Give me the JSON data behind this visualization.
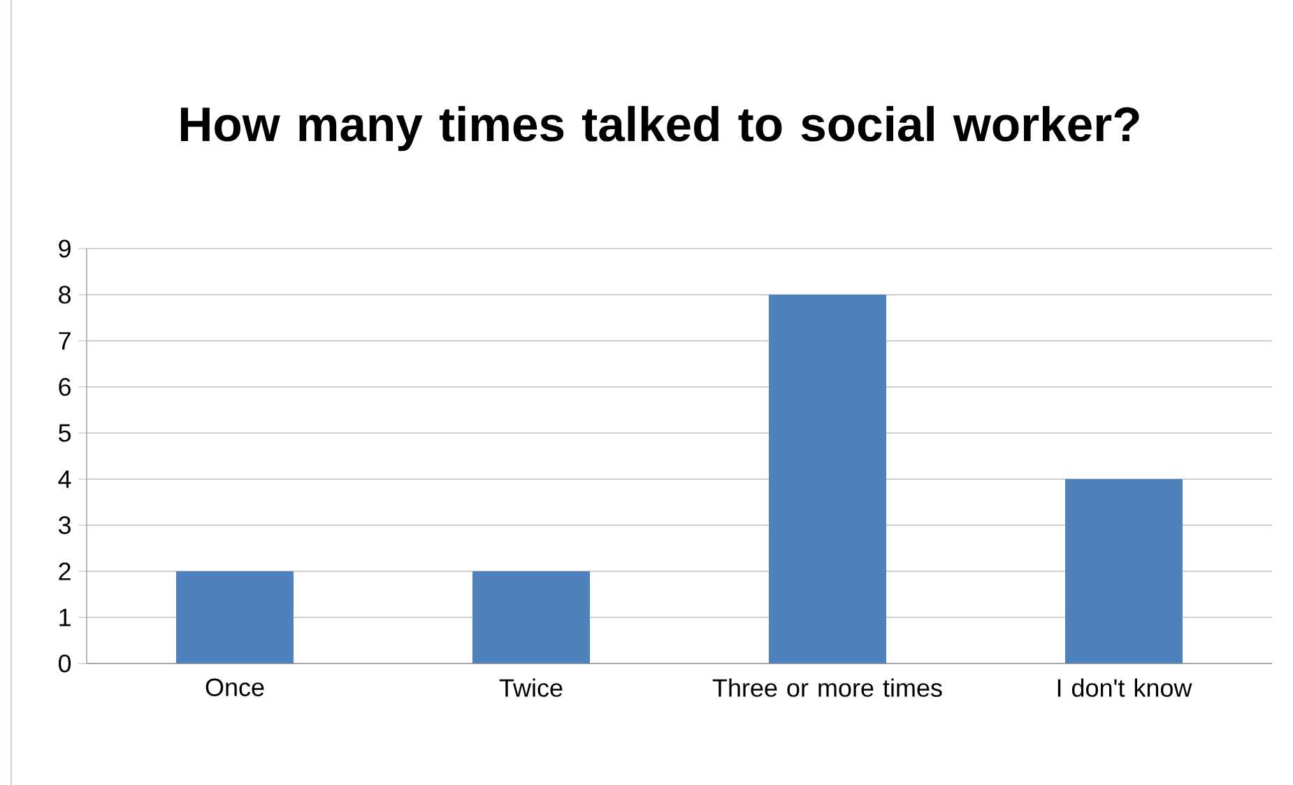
{
  "chart_data": {
    "type": "bar",
    "title": "How many times talked to social worker?",
    "categories": [
      "Once",
      "Twice",
      "Three or more times",
      "I don't know"
    ],
    "values": [
      2,
      2,
      8,
      4
    ],
    "color": "#4f81bd",
    "ylim": [
      0,
      9
    ],
    "yticks": [
      0,
      1,
      2,
      3,
      4,
      5,
      6,
      7,
      8,
      9
    ],
    "grid": "y"
  }
}
